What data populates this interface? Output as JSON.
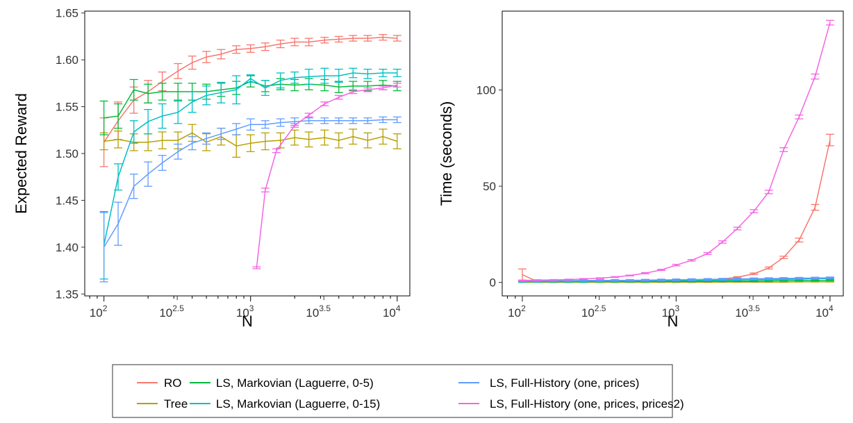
{
  "chart_data": [
    {
      "type": "line",
      "xlabel": "N",
      "ylabel": "Expected Reward",
      "x_scale": "log10",
      "x_tick_labels": [
        "10^2",
        "10^2.5",
        "10^3",
        "10^3.5",
        "10^4"
      ],
      "y_tick_labels": [
        "1.35",
        "1.40",
        "1.45",
        "1.50",
        "1.55",
        "1.60",
        "1.65"
      ],
      "xlim": [
        74,
        12200
      ],
      "ylim": [
        1.348,
        1.652
      ],
      "grid": false,
      "error_bars": true,
      "series": [
        {
          "name": "RO",
          "x": [
            100,
            125,
            160,
            200,
            250,
            320,
            400,
            500,
            630,
            800,
            1000,
            1260,
            1600,
            2000,
            2500,
            3200,
            4000,
            5000,
            6300,
            8000,
            10000
          ],
          "y": [
            1.512,
            1.535,
            1.557,
            1.566,
            1.577,
            1.588,
            1.597,
            1.603,
            1.606,
            1.611,
            1.612,
            1.614,
            1.617,
            1.619,
            1.619,
            1.621,
            1.622,
            1.623,
            1.623,
            1.624,
            1.623
          ],
          "err": [
            0.026,
            0.02,
            0.014,
            0.012,
            0.01,
            0.008,
            0.007,
            0.006,
            0.005,
            0.004,
            0.004,
            0.004,
            0.004,
            0.004,
            0.004,
            0.003,
            0.003,
            0.003,
            0.003,
            0.003,
            0.003
          ]
        },
        {
          "name": "Tree",
          "x": [
            100,
            125,
            160,
            200,
            250,
            320,
            400,
            500,
            630,
            800,
            1000,
            1260,
            1600,
            2000,
            2500,
            3200,
            4000,
            5000,
            6300,
            8000,
            10000
          ],
          "y": [
            1.513,
            1.515,
            1.512,
            1.512,
            1.514,
            1.514,
            1.522,
            1.512,
            1.518,
            1.508,
            1.511,
            1.513,
            1.514,
            1.517,
            1.515,
            1.517,
            1.514,
            1.518,
            1.514,
            1.518,
            1.513
          ],
          "err": [
            0.009,
            0.009,
            0.009,
            0.009,
            0.009,
            0.009,
            0.009,
            0.009,
            0.009,
            0.012,
            0.009,
            0.009,
            0.008,
            0.008,
            0.008,
            0.008,
            0.008,
            0.008,
            0.008,
            0.008,
            0.008
          ]
        },
        {
          "name": "LS, Markovian (Laguerre, 0-5)",
          "x": [
            100,
            125,
            160,
            200,
            250,
            320,
            400,
            500,
            630,
            800,
            1000,
            1260,
            1600,
            2000,
            2500,
            3200,
            4000,
            5000,
            6300,
            8000,
            10000
          ],
          "y": [
            1.538,
            1.54,
            1.568,
            1.564,
            1.566,
            1.566,
            1.566,
            1.566,
            1.568,
            1.57,
            1.577,
            1.572,
            1.574,
            1.573,
            1.574,
            1.573,
            1.571,
            1.572,
            1.572,
            1.573,
            1.572
          ],
          "err": [
            0.018,
            0.013,
            0.011,
            0.01,
            0.009,
            0.009,
            0.009,
            0.008,
            0.007,
            0.007,
            0.006,
            0.006,
            0.006,
            0.006,
            0.006,
            0.006,
            0.006,
            0.005,
            0.005,
            0.005,
            0.005
          ]
        },
        {
          "name": "LS, Markovian (Laguerre, 0-15)",
          "x": [
            100,
            125,
            160,
            200,
            250,
            320,
            400,
            500,
            630,
            800,
            1000,
            1260,
            1600,
            2000,
            2500,
            3200,
            4000,
            5000,
            6300,
            8000,
            10000
          ],
          "y": [
            1.402,
            1.475,
            1.523,
            1.534,
            1.54,
            1.544,
            1.555,
            1.562,
            1.565,
            1.568,
            1.58,
            1.57,
            1.578,
            1.581,
            1.582,
            1.583,
            1.583,
            1.586,
            1.585,
            1.586,
            1.586
          ],
          "err": [
            0.036,
            0.014,
            0.012,
            0.013,
            0.013,
            0.012,
            0.011,
            0.01,
            0.011,
            0.015,
            0.004,
            0.008,
            0.008,
            0.006,
            0.008,
            0.008,
            0.007,
            0.005,
            0.005,
            0.004,
            0.004
          ]
        },
        {
          "name": "LS, Full-History (one, prices)",
          "x": [
            100,
            125,
            160,
            200,
            250,
            320,
            400,
            500,
            630,
            800,
            1000,
            1260,
            1600,
            2000,
            2500,
            3200,
            4000,
            5000,
            6300,
            8000,
            10000
          ],
          "y": [
            1.4,
            1.425,
            1.465,
            1.478,
            1.49,
            1.502,
            1.511,
            1.516,
            1.521,
            1.526,
            1.531,
            1.531,
            1.533,
            1.534,
            1.535,
            1.535,
            1.535,
            1.535,
            1.535,
            1.536,
            1.536
          ],
          "err": [
            0.037,
            0.023,
            0.013,
            0.013,
            0.008,
            0.008,
            0.007,
            0.006,
            0.006,
            0.006,
            0.006,
            0.004,
            0.004,
            0.004,
            0.003,
            0.003,
            0.003,
            0.003,
            0.003,
            0.003,
            0.003
          ]
        },
        {
          "name": "LS, Full-History (one, prices, prices2)",
          "x": [
            1100,
            1260,
            1500,
            2000,
            2500,
            3200,
            4000,
            5000,
            6300,
            8000,
            10000
          ],
          "y": [
            1.378,
            1.461,
            1.503,
            1.53,
            1.541,
            1.553,
            1.56,
            1.566,
            1.568,
            1.57,
            1.573
          ],
          "err": [
            0.001,
            0.002,
            0.002,
            0.002,
            0.002,
            0.002,
            0.002,
            0.002,
            0.002,
            0.002,
            0.002
          ]
        }
      ]
    },
    {
      "type": "line",
      "xlabel": "N",
      "ylabel": "Time (seconds)",
      "x_scale": "log10",
      "x_tick_labels": [
        "10^2",
        "10^2.5",
        "10^3",
        "10^3.5",
        "10^4"
      ],
      "y_tick_labels": [
        "0",
        "50",
        "100"
      ],
      "xlim": [
        74,
        12200
      ],
      "ylim": [
        -7,
        141
      ],
      "grid": false,
      "error_bars": true,
      "series": [
        {
          "name": "RO",
          "x": [
            100,
            125,
            160,
            200,
            250,
            320,
            400,
            500,
            630,
            800,
            1000,
            1260,
            1600,
            2000,
            2500,
            3200,
            4000,
            5000,
            6300,
            8000,
            10000
          ],
          "y": [
            4,
            0.5,
            0.4,
            0.4,
            0.4,
            0.5,
            0.5,
            0.5,
            0.6,
            0.7,
            0.8,
            1,
            1.3,
            1.8,
            2.7,
            4.5,
            7.5,
            13,
            22,
            39,
            74
          ],
          "err": [
            3,
            0.2,
            0.2,
            0.2,
            0.2,
            0.2,
            0.2,
            0.2,
            0.2,
            0.2,
            0.2,
            0.2,
            0.2,
            0.2,
            0.3,
            0.4,
            0.5,
            0.6,
            1,
            1.5,
            3
          ]
        },
        {
          "name": "Tree",
          "x": [
            100,
            125,
            160,
            200,
            250,
            320,
            400,
            500,
            630,
            800,
            1000,
            1260,
            1600,
            2000,
            2500,
            3200,
            4000,
            5000,
            6300,
            8000,
            10000
          ],
          "y": [
            0.1,
            0.1,
            0.1,
            0.1,
            0.1,
            0.1,
            0.1,
            0.1,
            0.1,
            0.1,
            0.1,
            0.1,
            0.1,
            0.2,
            0.2,
            0.2,
            0.2,
            0.2,
            0.3,
            0.3,
            0.3
          ],
          "err": [
            0.1,
            0.1,
            0.1,
            0.1,
            0.1,
            0.1,
            0.1,
            0.1,
            0.1,
            0.1,
            0.1,
            0.1,
            0.1,
            0.1,
            0.1,
            0.1,
            0.1,
            0.1,
            0.1,
            0.1,
            0.1
          ]
        },
        {
          "name": "LS, Markovian (Laguerre, 0-5)",
          "x": [
            100,
            125,
            160,
            200,
            250,
            320,
            400,
            500,
            630,
            800,
            1000,
            1260,
            1600,
            2000,
            2500,
            3200,
            4000,
            5000,
            6300,
            8000,
            10000
          ],
          "y": [
            0.3,
            0.3,
            0.3,
            0.3,
            0.3,
            0.4,
            0.4,
            0.4,
            0.4,
            0.5,
            0.5,
            0.5,
            0.6,
            0.6,
            0.7,
            0.7,
            0.8,
            0.9,
            1,
            1,
            1.1
          ],
          "err": [
            0.2,
            0.2,
            0.2,
            0.2,
            0.2,
            0.2,
            0.2,
            0.2,
            0.2,
            0.2,
            0.2,
            0.2,
            0.2,
            0.2,
            0.2,
            0.2,
            0.2,
            0.2,
            0.2,
            0.2,
            0.2
          ]
        },
        {
          "name": "LS, Markovian (Laguerre, 0-15)",
          "x": [
            100,
            125,
            160,
            200,
            250,
            320,
            400,
            500,
            630,
            800,
            1000,
            1260,
            1600,
            2000,
            2500,
            3200,
            4000,
            5000,
            6300,
            8000,
            10000
          ],
          "y": [
            0.5,
            0.5,
            0.6,
            0.6,
            0.6,
            0.7,
            0.7,
            0.8,
            0.8,
            0.9,
            1,
            1,
            1.1,
            1.2,
            1.3,
            1.4,
            1.5,
            1.6,
            1.7,
            1.9,
            2
          ],
          "err": [
            0.3,
            0.3,
            0.3,
            0.3,
            0.3,
            0.3,
            0.3,
            0.3,
            0.3,
            0.3,
            0.3,
            0.3,
            0.3,
            0.3,
            0.3,
            0.3,
            0.3,
            0.3,
            0.3,
            0.3,
            0.3
          ]
        },
        {
          "name": "LS, Full-History (one, prices)",
          "x": [
            100,
            125,
            160,
            200,
            250,
            320,
            400,
            500,
            630,
            800,
            1000,
            1260,
            1600,
            2000,
            2500,
            3200,
            4000,
            5000,
            6300,
            8000,
            10000
          ],
          "y": [
            0.8,
            0.8,
            0.9,
            0.9,
            1,
            1,
            1.1,
            1.1,
            1.2,
            1.3,
            1.4,
            1.5,
            1.6,
            1.7,
            1.8,
            1.9,
            2,
            2.1,
            2.2,
            2.3,
            2.4
          ],
          "err": [
            0.4,
            0.4,
            0.4,
            0.4,
            0.4,
            0.4,
            0.4,
            0.4,
            0.4,
            0.4,
            0.4,
            0.4,
            0.4,
            0.4,
            0.4,
            0.4,
            0.4,
            0.4,
            0.4,
            0.4,
            0.4
          ]
        },
        {
          "name": "LS, Full-History (one, prices, prices2)",
          "x": [
            100,
            125,
            160,
            200,
            250,
            320,
            400,
            500,
            630,
            800,
            1000,
            1260,
            1600,
            2000,
            2500,
            3200,
            4000,
            5000,
            6300,
            8000,
            10000
          ],
          "y": [
            1,
            1.2,
            1.3,
            1.5,
            1.8,
            2.2,
            2.8,
            3.6,
            4.8,
            6.5,
            9,
            11.5,
            15,
            21,
            28,
            37,
            47,
            69,
            86,
            107,
            135
          ],
          "err": [
            0.2,
            0.2,
            0.2,
            0.2,
            0.2,
            0.2,
            0.2,
            0.2,
            0.3,
            0.3,
            0.4,
            0.4,
            0.5,
            0.6,
            0.7,
            0.8,
            0.9,
            1,
            1,
            1.3,
            1.2
          ]
        }
      ]
    }
  ],
  "legend": {
    "placement": "bottom",
    "items": [
      {
        "label": "RO",
        "color": "#F8766D"
      },
      {
        "label": "Tree",
        "color": "#B79F00"
      },
      {
        "label": "LS, Markovian (Laguerre, 0-5)",
        "color": "#00BA38"
      },
      {
        "label": "LS, Markovian (Laguerre, 0-15)",
        "color": "#00BFC4"
      },
      {
        "label": "LS, Full-History (one, prices)",
        "color": "#619CFF"
      },
      {
        "label": "LS, Full-History (one, prices, prices2)",
        "color": "#F564E3"
      }
    ]
  }
}
